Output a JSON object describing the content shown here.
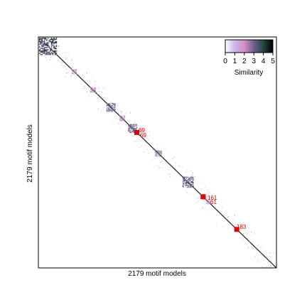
{
  "chart_data": {
    "type": "heatmap",
    "title": "",
    "xlabel": "2179 motif models",
    "ylabel": "2179 motif models",
    "n": 2179,
    "colorbar": {
      "label": "Similarity",
      "ticks": [
        "0",
        "1",
        "2",
        "3",
        "4",
        "5"
      ],
      "range": [
        0,
        5
      ],
      "placement": "top-right",
      "colors": [
        "#ffffff",
        "#c9b6e8",
        "#d58fbf",
        "#6c5f92",
        "#23463f",
        "#000000"
      ]
    },
    "clusters": [
      {
        "start": 0,
        "end": 160,
        "similarity": 4.5
      },
      {
        "start": 300,
        "end": 345,
        "similarity": 3
      },
      {
        "start": 470,
        "end": 520,
        "similarity": 3
      },
      {
        "start": 620,
        "end": 700,
        "similarity": 4
      },
      {
        "start": 740,
        "end": 790,
        "similarity": 3
      },
      {
        "start": 820,
        "end": 900,
        "similarity": 4
      },
      {
        "start": 1070,
        "end": 1130,
        "similarity": 4
      },
      {
        "start": 1320,
        "end": 1420,
        "similarity": 4
      },
      {
        "start": 1500,
        "end": 1540,
        "similarity": 3
      },
      {
        "start": 1540,
        "end": 1580,
        "similarity": 3
      }
    ],
    "highlights": [
      {
        "label": "69",
        "index": 900
      },
      {
        "label": "61",
        "index": 1510
      },
      {
        "label": "183",
        "index": 1820
      }
    ],
    "annotations": [
      "69",
      "69",
      "161",
      "61",
      "183"
    ],
    "grid": false,
    "legend": "top-right"
  }
}
